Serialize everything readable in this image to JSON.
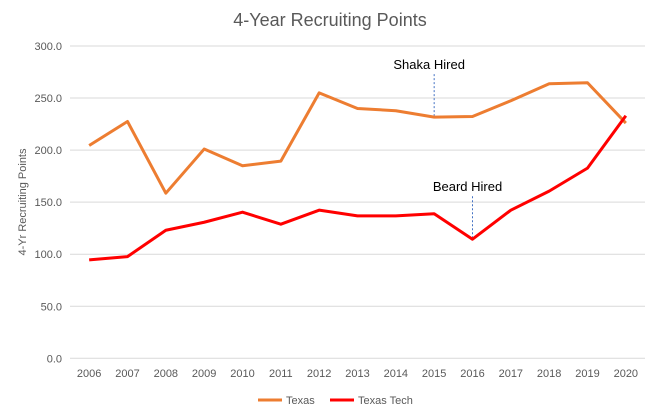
{
  "chart_data": {
    "type": "line",
    "title": "4-Year Recruiting Points",
    "xlabel": "",
    "ylabel": "4-Yr Recruiting Points",
    "ylim": [
      0,
      300
    ],
    "yticks": [
      "0.0",
      "50.0",
      "100.0",
      "150.0",
      "200.0",
      "250.0",
      "300.0"
    ],
    "categories": [
      "2006",
      "2007",
      "2008",
      "2009",
      "2010",
      "2011",
      "2012",
      "2013",
      "2014",
      "2015",
      "2016",
      "2017",
      "2018",
      "2019",
      "2020"
    ],
    "grid": true,
    "legend_position": "bottom",
    "series": [
      {
        "name": "Texas",
        "color": "#ED7D31",
        "values": [
          204.4,
          227.5,
          158.6,
          201,
          185,
          189.4,
          255,
          240,
          237.8,
          231.7,
          232.3,
          247.4,
          263.7,
          264.7,
          226
        ]
      },
      {
        "name": "Texas Tech",
        "color": "#FF0000",
        "values": [
          94.5,
          97.7,
          123,
          130.7,
          140.4,
          128.8,
          142.3,
          136.8,
          136.8,
          138.8,
          114.4,
          142.3,
          160.6,
          182.7,
          233
        ]
      }
    ],
    "annotations": [
      {
        "text": "Shaka Hired",
        "x": "2015",
        "series": 0
      },
      {
        "text": "Beard Hired",
        "x": "2016",
        "series": 1
      }
    ]
  }
}
